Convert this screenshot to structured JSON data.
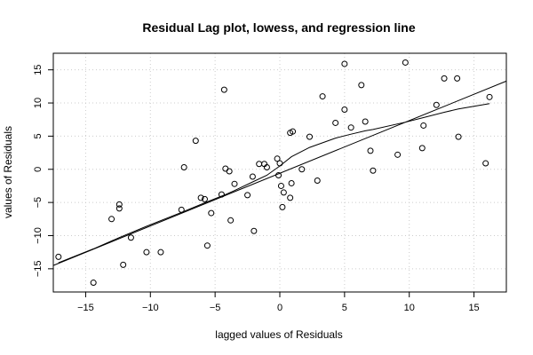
{
  "chart_data": {
    "type": "scatter",
    "title": "Residual Lag plot, lowess, and regression line",
    "xlabel": "lagged values of Residuals",
    "ylabel": "values of Residuals",
    "xlim": [
      -17.5,
      17.5
    ],
    "ylim": [
      -18.5,
      17.5
    ],
    "xticks": [
      -15,
      -10,
      -5,
      0,
      5,
      10,
      15
    ],
    "yticks": [
      -15,
      -10,
      -5,
      0,
      5,
      10,
      15
    ],
    "grid": true,
    "colors": {
      "points": "#000000",
      "lines": "#000000",
      "grid": "#cccccc",
      "background": "#ffffff"
    },
    "points": [
      [
        -17.1,
        -13.2
      ],
      [
        -14.4,
        -17.1
      ],
      [
        -13.0,
        -7.5
      ],
      [
        -12.4,
        -5.3
      ],
      [
        -12.4,
        -5.9
      ],
      [
        -12.1,
        -14.4
      ],
      [
        -11.5,
        -10.3
      ],
      [
        -10.3,
        -12.5
      ],
      [
        -9.2,
        -12.5
      ],
      [
        -7.6,
        -6.1
      ],
      [
        -7.4,
        0.3
      ],
      [
        -6.5,
        4.3
      ],
      [
        -6.1,
        -4.3
      ],
      [
        -5.8,
        -4.5
      ],
      [
        -5.6,
        -11.5
      ],
      [
        -5.3,
        -6.6
      ],
      [
        -4.5,
        -3.8
      ],
      [
        -4.3,
        12.0
      ],
      [
        -4.2,
        0.1
      ],
      [
        -3.9,
        -0.3
      ],
      [
        -3.8,
        -7.7
      ],
      [
        -3.5,
        -2.2
      ],
      [
        -2.5,
        -3.9
      ],
      [
        -2.1,
        -1.1
      ],
      [
        -2.0,
        -9.3
      ],
      [
        -1.6,
        0.8
      ],
      [
        -1.2,
        0.8
      ],
      [
        -1.0,
        0.3
      ],
      [
        -0.2,
        1.6
      ],
      [
        -0.1,
        -0.9
      ],
      [
        0.0,
        0.9
      ],
      [
        0.1,
        -2.5
      ],
      [
        0.2,
        -5.7
      ],
      [
        0.3,
        -3.5
      ],
      [
        0.8,
        5.5
      ],
      [
        0.8,
        -4.3
      ],
      [
        0.9,
        -2.1
      ],
      [
        1.0,
        5.7
      ],
      [
        1.7,
        0.0
      ],
      [
        2.3,
        4.9
      ],
      [
        2.9,
        -1.7
      ],
      [
        3.3,
        11.0
      ],
      [
        4.3,
        7.0
      ],
      [
        5.0,
        15.9
      ],
      [
        5.0,
        9.0
      ],
      [
        5.5,
        6.3
      ],
      [
        6.3,
        12.7
      ],
      [
        6.6,
        7.2
      ],
      [
        7.0,
        2.8
      ],
      [
        7.2,
        -0.2
      ],
      [
        9.1,
        2.2
      ],
      [
        9.7,
        16.1
      ],
      [
        11.0,
        3.2
      ],
      [
        11.1,
        6.6
      ],
      [
        12.1,
        9.7
      ],
      [
        12.7,
        13.7
      ],
      [
        13.7,
        13.7
      ],
      [
        13.8,
        4.9
      ],
      [
        15.9,
        0.9
      ],
      [
        16.2,
        10.9
      ]
    ],
    "regression": {
      "x": [
        -17.5,
        17.5
      ],
      "y": [
        -14.5,
        13.3
      ]
    },
    "lowess": {
      "x": [
        -17.1,
        -14.4,
        -12.4,
        -10.3,
        -7.6,
        -5.6,
        -4.2,
        -3.5,
        -2.1,
        -1.0,
        0.0,
        0.9,
        2.3,
        3.3,
        4.3,
        5.5,
        6.6,
        7.2,
        9.7,
        11.1,
        12.7,
        13.8,
        16.2
      ],
      "y": [
        -14.1,
        -12.0,
        -10.3,
        -8.6,
        -6.5,
        -4.9,
        -3.8,
        -3.2,
        -1.9,
        -0.9,
        0.5,
        1.9,
        3.3,
        4.0,
        4.7,
        5.3,
        5.8,
        6.0,
        7.1,
        7.8,
        8.6,
        9.1,
        9.9
      ]
    }
  }
}
